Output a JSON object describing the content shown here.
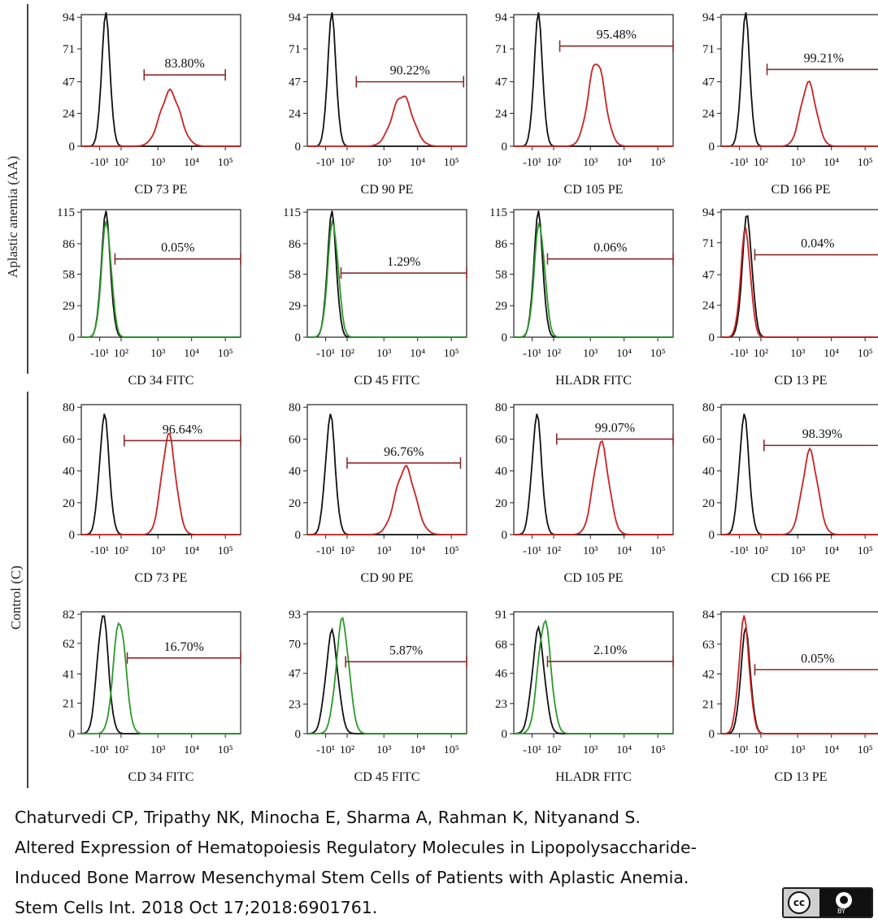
{
  "figure": {
    "group_labels": [
      "Aplastic anemia (AA)",
      "Control (C)"
    ],
    "citation_lines": [
      "Chaturvedi CP, Tripathy NK, Minocha E, Sharma A, Rahman K, Nityanand S.",
      "Altered Expression of Hematopoiesis Regulatory Molecules in Lipopolysaccharide-",
      "Induced Bone Marrow Mesenchymal Stem Cells of Patients with Aplastic Anemia.",
      "Stem Cells Int. 2018 Oct 17;2018:6901761."
    ],
    "license_badge": {
      "left": "cc",
      "right": "BY"
    }
  },
  "chart_data": [
    {
      "type": "area",
      "group": "Aplastic anemia (AA)",
      "xlabel": "CD 73 PE",
      "ylabel": "",
      "x_ticks": [
        "-10¹",
        "10²",
        "10³",
        "10⁴",
        "10⁵"
      ],
      "y_ticks": [
        0,
        24,
        47,
        71,
        94
      ],
      "ylim": [
        0,
        94
      ],
      "gate_label": "83.80%",
      "gate_height": 52,
      "gate_range": [
        2.05,
        4.7
      ],
      "series": [
        {
          "name": "isotype",
          "color": "#111111",
          "peak_x": 0.8,
          "peak_y": 94,
          "width": 0.14
        },
        {
          "name": "marker",
          "color": "#cc2222",
          "peak_x": 2.9,
          "peak_y": 40,
          "width": 0.32
        }
      ]
    },
    {
      "type": "area",
      "group": "Aplastic anemia (AA)",
      "xlabel": "CD 90 PE",
      "ylabel": "",
      "x_ticks": [
        "-10¹",
        "10²",
        "10³",
        "10⁴",
        "10⁵"
      ],
      "y_ticks": [
        0,
        24,
        47,
        71,
        94
      ],
      "ylim": [
        0,
        94
      ],
      "gate_label": "90.22%",
      "gate_height": 47,
      "gate_range": [
        1.6,
        5.1
      ],
      "series": [
        {
          "name": "isotype",
          "color": "#111111",
          "peak_x": 0.8,
          "peak_y": 94,
          "width": 0.14
        },
        {
          "name": "marker",
          "color": "#cc2222",
          "peak_x": 3.1,
          "peak_y": 37,
          "width": 0.33
        }
      ]
    },
    {
      "type": "area",
      "group": "Aplastic anemia (AA)",
      "xlabel": "CD 105 PE",
      "ylabel": "",
      "x_ticks": [
        "-10¹",
        "10²",
        "10³",
        "10⁴",
        "10⁵"
      ],
      "y_ticks": [
        0,
        24,
        47,
        71,
        94
      ],
      "ylim": [
        0,
        94
      ],
      "gate_label": "95.48%",
      "gate_height": 73,
      "gate_range": [
        1.5,
        5.2
      ],
      "series": [
        {
          "name": "isotype",
          "color": "#111111",
          "peak_x": 0.8,
          "peak_y": 94,
          "width": 0.14
        },
        {
          "name": "marker",
          "color": "#cc2222",
          "peak_x": 2.7,
          "peak_y": 62,
          "width": 0.27
        }
      ]
    },
    {
      "type": "area",
      "group": "Aplastic anemia (AA)",
      "xlabel": "CD 166 PE",
      "ylabel": "",
      "x_ticks": [
        "-10¹",
        "10²",
        "10³",
        "10⁴",
        "10⁵"
      ],
      "y_ticks": [
        0,
        24,
        47,
        71,
        94
      ],
      "ylim": [
        0,
        94
      ],
      "gate_label": "99.21%",
      "gate_height": 56,
      "gate_range": [
        1.5,
        5.2
      ],
      "series": [
        {
          "name": "isotype",
          "color": "#111111",
          "peak_x": 0.8,
          "peak_y": 94,
          "width": 0.14
        },
        {
          "name": "marker",
          "color": "#cc2222",
          "peak_x": 2.85,
          "peak_y": 46,
          "width": 0.25
        }
      ]
    },
    {
      "type": "area",
      "group": "Aplastic anemia (AA)",
      "xlabel": "CD 34 FITC",
      "ylabel": "",
      "x_ticks": [
        "-10¹",
        "10²",
        "10³",
        "10⁴",
        "10⁵"
      ],
      "y_ticks": [
        0,
        29,
        58,
        86,
        115
      ],
      "ylim": [
        0,
        115
      ],
      "gate_label": "0.05%",
      "gate_height": 72,
      "gate_range": [
        1.1,
        5.2
      ],
      "series": [
        {
          "name": "isotype",
          "color": "#111111",
          "peak_x": 0.8,
          "peak_y": 112,
          "width": 0.15
        },
        {
          "name": "marker",
          "color": "#2a9a2a",
          "peak_x": 0.82,
          "peak_y": 105,
          "width": 0.16
        }
      ]
    },
    {
      "type": "area",
      "group": "Aplastic anemia (AA)",
      "xlabel": "CD 45 FITC",
      "ylabel": "",
      "x_ticks": [
        "-10¹",
        "10²",
        "10³",
        "10⁴",
        "10⁵"
      ],
      "y_ticks": [
        0,
        29,
        58,
        86,
        115
      ],
      "ylim": [
        0,
        115
      ],
      "gate_label": "1.29%",
      "gate_height": 59,
      "gate_range": [
        1.1,
        5.2
      ],
      "series": [
        {
          "name": "isotype",
          "color": "#111111",
          "peak_x": 0.8,
          "peak_y": 112,
          "width": 0.15
        },
        {
          "name": "marker",
          "color": "#2a9a2a",
          "peak_x": 0.84,
          "peak_y": 106,
          "width": 0.17
        }
      ]
    },
    {
      "type": "area",
      "group": "Aplastic anemia (AA)",
      "xlabel": "HLADR FITC",
      "ylabel": "",
      "x_ticks": [
        "-10¹",
        "10²",
        "10³",
        "10⁴",
        "10⁵"
      ],
      "y_ticks": [
        0,
        29,
        58,
        86,
        115
      ],
      "ylim": [
        0,
        115
      ],
      "gate_label": "0.06%",
      "gate_height": 72,
      "gate_range": [
        1.1,
        5.2
      ],
      "series": [
        {
          "name": "isotype",
          "color": "#111111",
          "peak_x": 0.8,
          "peak_y": 112,
          "width": 0.15
        },
        {
          "name": "marker",
          "color": "#2a9a2a",
          "peak_x": 0.84,
          "peak_y": 104,
          "width": 0.17
        }
      ]
    },
    {
      "type": "area",
      "group": "Aplastic anemia (AA)",
      "xlabel": "CD 13 PE",
      "ylabel": "",
      "x_ticks": [
        "-10¹",
        "10²",
        "10³",
        "10⁴",
        "10⁵"
      ],
      "y_ticks": [
        0,
        24,
        47,
        71,
        94
      ],
      "ylim": [
        0,
        94
      ],
      "gate_label": "0.04%",
      "gate_height": 62,
      "gate_range": [
        1.1,
        5.2
      ],
      "series": [
        {
          "name": "isotype",
          "color": "#111111",
          "peak_x": 0.85,
          "peak_y": 90,
          "width": 0.16
        },
        {
          "name": "marker",
          "color": "#cc2222",
          "peak_x": 0.8,
          "peak_y": 80,
          "width": 0.16
        }
      ]
    },
    {
      "type": "area",
      "group": "Control (C)",
      "xlabel": "CD 73 PE",
      "ylabel": "",
      "x_ticks": [
        "-10¹",
        "10²",
        "10³",
        "10⁴",
        "10⁵"
      ],
      "y_ticks": [
        0,
        20,
        40,
        60,
        80
      ],
      "ylim": [
        0,
        80
      ],
      "gate_label": "96.64%",
      "gate_height": 59,
      "gate_range": [
        1.4,
        5.2
      ],
      "series": [
        {
          "name": "isotype",
          "color": "#111111",
          "peak_x": 0.75,
          "peak_y": 74,
          "width": 0.16
        },
        {
          "name": "marker",
          "color": "#cc2222",
          "peak_x": 2.85,
          "peak_y": 62,
          "width": 0.23
        }
      ]
    },
    {
      "type": "area",
      "group": "Control (C)",
      "xlabel": "CD 90 PE",
      "ylabel": "",
      "x_ticks": [
        "-10¹",
        "10²",
        "10³",
        "10⁴",
        "10⁵"
      ],
      "y_ticks": [
        0,
        20,
        40,
        60,
        80
      ],
      "ylim": [
        0,
        80
      ],
      "gate_label": "96.76%",
      "gate_height": 45,
      "gate_range": [
        1.3,
        5.0
      ],
      "series": [
        {
          "name": "isotype",
          "color": "#111111",
          "peak_x": 0.75,
          "peak_y": 74,
          "width": 0.16
        },
        {
          "name": "marker",
          "color": "#cc2222",
          "peak_x": 3.2,
          "peak_y": 42,
          "width": 0.32
        }
      ]
    },
    {
      "type": "area",
      "group": "Control (C)",
      "xlabel": "CD 105 PE",
      "ylabel": "",
      "x_ticks": [
        "-10¹",
        "10²",
        "10³",
        "10⁴",
        "10⁵"
      ],
      "y_ticks": [
        0,
        20,
        40,
        60,
        80
      ],
      "ylim": [
        0,
        80
      ],
      "gate_label": "99.07%",
      "gate_height": 60,
      "gate_range": [
        1.4,
        5.2
      ],
      "series": [
        {
          "name": "isotype",
          "color": "#111111",
          "peak_x": 0.75,
          "peak_y": 74,
          "width": 0.16
        },
        {
          "name": "marker",
          "color": "#cc2222",
          "peak_x": 2.85,
          "peak_y": 57,
          "width": 0.25
        }
      ]
    },
    {
      "type": "area",
      "group": "Control (C)",
      "xlabel": "CD 166 PE",
      "ylabel": "",
      "x_ticks": [
        "-10¹",
        "10²",
        "10³",
        "10⁴",
        "10⁵"
      ],
      "y_ticks": [
        0,
        20,
        40,
        60,
        80
      ],
      "ylim": [
        0,
        80
      ],
      "gate_label": "98.39%",
      "gate_height": 56,
      "gate_range": [
        1.4,
        5.2
      ],
      "series": [
        {
          "name": "isotype",
          "color": "#111111",
          "peak_x": 0.75,
          "peak_y": 74,
          "width": 0.16
        },
        {
          "name": "marker",
          "color": "#cc2222",
          "peak_x": 2.9,
          "peak_y": 52,
          "width": 0.25
        }
      ]
    },
    {
      "type": "area",
      "group": "Control (C)",
      "xlabel": "CD 34 FITC",
      "ylabel": "",
      "x_ticks": [
        "-10¹",
        "10²",
        "10³",
        "10⁴",
        "10⁵"
      ],
      "y_ticks": [
        0,
        21,
        41,
        62,
        82
      ],
      "ylim": [
        0,
        82
      ],
      "gate_label": "16.70%",
      "gate_height": 52,
      "gate_range": [
        1.5,
        5.2
      ],
      "series": [
        {
          "name": "isotype",
          "color": "#111111",
          "peak_x": 0.7,
          "peak_y": 82,
          "width": 0.18
        },
        {
          "name": "marker",
          "color": "#2a9a2a",
          "peak_x": 1.25,
          "peak_y": 78,
          "width": 0.2
        }
      ]
    },
    {
      "type": "area",
      "group": "Control (C)",
      "xlabel": "CD 45 FITC",
      "ylabel": "",
      "x_ticks": [
        "-10¹",
        "10²",
        "10³",
        "10⁴",
        "10⁵"
      ],
      "y_ticks": [
        0,
        23,
        47,
        70,
        93
      ],
      "ylim": [
        0,
        93
      ],
      "gate_label": "5.87%",
      "gate_height": 56,
      "gate_range": [
        1.25,
        5.2
      ],
      "series": [
        {
          "name": "isotype",
          "color": "#111111",
          "peak_x": 0.8,
          "peak_y": 78,
          "width": 0.2
        },
        {
          "name": "marker",
          "color": "#2a9a2a",
          "peak_x": 1.15,
          "peak_y": 88,
          "width": 0.21
        }
      ]
    },
    {
      "type": "area",
      "group": "Control (C)",
      "xlabel": "HLADR FITC",
      "ylabel": "",
      "x_ticks": [
        "-10¹",
        "10²",
        "10³",
        "10⁴",
        "10⁵"
      ],
      "y_ticks": [
        0,
        23,
        46,
        68,
        91
      ],
      "ylim": [
        0,
        91
      ],
      "gate_label": "2.10%",
      "gate_height": 55,
      "gate_range": [
        1.1,
        5.2
      ],
      "series": [
        {
          "name": "isotype",
          "color": "#111111",
          "peak_x": 0.8,
          "peak_y": 78,
          "width": 0.2
        },
        {
          "name": "marker",
          "color": "#2a9a2a",
          "peak_x": 1.0,
          "peak_y": 86,
          "width": 0.21
        }
      ]
    },
    {
      "type": "area",
      "group": "Control (C)",
      "xlabel": "CD 13 PE",
      "ylabel": "",
      "x_ticks": [
        "-10¹",
        "10²",
        "10³",
        "10⁴",
        "10⁵"
      ],
      "y_ticks": [
        0,
        21,
        42,
        63,
        84
      ],
      "ylim": [
        0,
        84
      ],
      "gate_label": "0.05%",
      "gate_height": 45,
      "gate_range": [
        1.1,
        5.2
      ],
      "series": [
        {
          "name": "isotype",
          "color": "#111111",
          "peak_x": 0.8,
          "peak_y": 72,
          "width": 0.16
        },
        {
          "name": "marker",
          "color": "#cc2222",
          "peak_x": 0.75,
          "peak_y": 80,
          "width": 0.17
        }
      ]
    }
  ]
}
